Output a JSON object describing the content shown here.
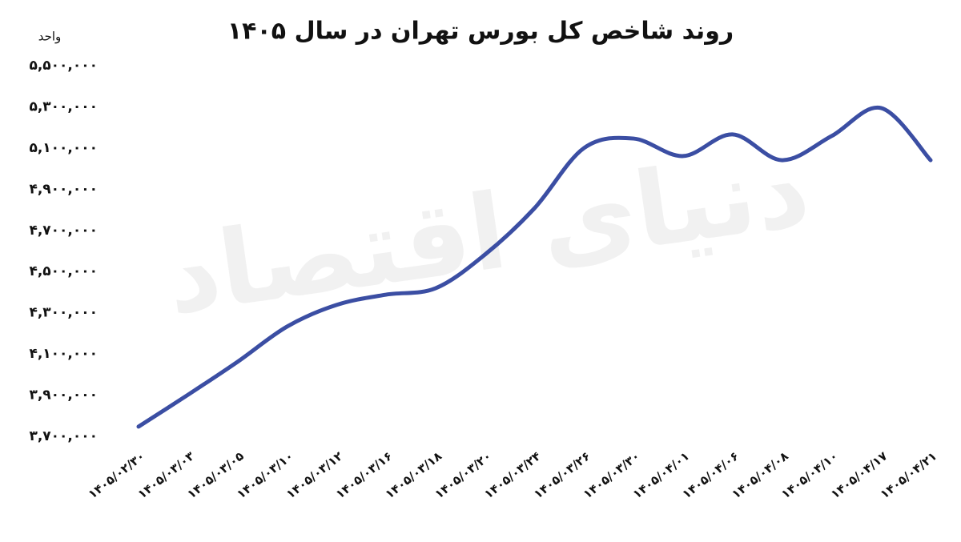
{
  "chart_data": {
    "type": "line",
    "title": "روند شاخص کل بورس تهران در سال ۱۴۰۵",
    "y_axis_label": "واحد",
    "watermark": "دنیای اقتصاد",
    "categories": [
      "۱۴۰۵/۰۲/۳۰",
      "۱۴۰۵/۰۳/۰۳",
      "۱۴۰۵/۰۳/۰۵",
      "۱۴۰۵/۰۳/۱۰",
      "۱۴۰۵/۰۳/۱۲",
      "۱۴۰۵/۰۳/۱۶",
      "۱۴۰۵/۰۳/۱۸",
      "۱۴۰۵/۰۳/۲۰",
      "۱۴۰۵/۰۳/۲۴",
      "۱۴۰۵/۰۳/۲۶",
      "۱۴۰۵/۰۳/۳۰",
      "۱۴۰۵/۰۴/۰۱",
      "۱۴۰۵/۰۴/۰۶",
      "۱۴۰۵/۰۴/۰۸",
      "۱۴۰۵/۰۴/۱۰",
      "۱۴۰۵/۰۴/۱۷",
      "۱۴۰۵/۰۴/۲۱"
    ],
    "values": [
      3747000,
      3902000,
      4062000,
      4233000,
      4338000,
      4388000,
      4419000,
      4583000,
      4808000,
      5100000,
      5146000,
      5061000,
      5166000,
      5041000,
      5158000,
      5294000,
      5041000
    ],
    "color": "#3b4ea3",
    "ylim": [
      3700000,
      5500000
    ],
    "yticks": [
      {
        "value": 3700000,
        "label": "۳,۷۰۰,۰۰۰"
      },
      {
        "value": 3900000,
        "label": "۳,۹۰۰,۰۰۰"
      },
      {
        "value": 4100000,
        "label": "۴,۱۰۰,۰۰۰"
      },
      {
        "value": 4300000,
        "label": "۴,۳۰۰,۰۰۰"
      },
      {
        "value": 4500000,
        "label": "۴,۵۰۰,۰۰۰"
      },
      {
        "value": 4700000,
        "label": "۴,۷۰۰,۰۰۰"
      },
      {
        "value": 4900000,
        "label": "۴,۹۰۰,۰۰۰"
      },
      {
        "value": 5100000,
        "label": "۵,۱۰۰,۰۰۰"
      },
      {
        "value": 5300000,
        "label": "۵,۳۰۰,۰۰۰"
      },
      {
        "value": 5500000,
        "label": "۵,۵۰۰,۰۰۰"
      }
    ],
    "grid": false
  }
}
